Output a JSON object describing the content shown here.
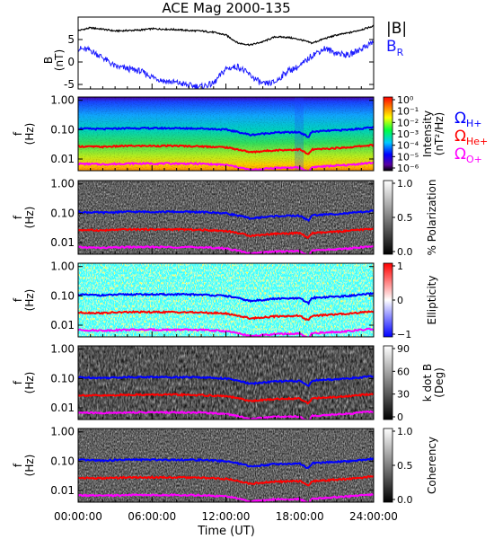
{
  "title": "ACE Mag 2000-135",
  "colors": {
    "btotal": "#000000",
    "br": "#1a1aff",
    "h_plus": "#0000ff",
    "he_plus": "#ff0000",
    "o_plus": "#ff00ff"
  },
  "legend": {
    "btotal": "|B|",
    "br_main": "B",
    "br_sub": "R",
    "omega": "Ω",
    "h_sub": "H+",
    "he_sub": "He+",
    "o_sub": "O+"
  },
  "chart_data": [
    {
      "panel": "B",
      "type": "line",
      "ylabel": "B",
      "ylabel_unit": "(nT)",
      "ylim": [
        -6,
        10
      ],
      "yticks": [
        "-5",
        "0",
        "5"
      ],
      "ytick_values": [
        -5,
        0,
        5
      ],
      "x_hours": [
        0,
        1,
        2,
        3,
        4,
        5,
        6,
        7,
        8,
        9,
        10,
        11,
        12,
        13,
        14,
        15,
        16,
        17,
        18,
        19,
        20,
        21,
        22,
        23,
        24
      ],
      "series": [
        {
          "name": "|B|",
          "values": [
            7.0,
            7.6,
            7.3,
            6.9,
            7.0,
            7.1,
            7.4,
            7.3,
            7.2,
            7.0,
            6.9,
            6.6,
            6.0,
            4.2,
            3.8,
            4.5,
            5.6,
            5.5,
            5.0,
            4.2,
            5.2,
            6.0,
            6.5,
            7.2,
            8.0
          ]
        },
        {
          "name": "B_R",
          "values": [
            3.0,
            2.6,
            1.0,
            -1.0,
            -1.5,
            -2.0,
            -3.3,
            -4.2,
            -4.6,
            -5.2,
            -5.5,
            -4.8,
            -1.5,
            -1.0,
            -3.0,
            -5.0,
            -4.5,
            -2.0,
            -1.0,
            1.5,
            3.0,
            2.0,
            1.5,
            3.0,
            4.5
          ]
        }
      ]
    },
    {
      "panel": "intensity",
      "type": "heatmap",
      "ylabel": "f",
      "ylabel_unit": "(Hz)",
      "colorbar_label": "Intensity",
      "colorbar_unit": "(nT²/Hz)",
      "colorbar_ticks": [
        "10⁰",
        "10⁻¹",
        "10⁻²",
        "10⁻³",
        "10⁻⁴",
        "10⁻⁵",
        "10⁻⁶"
      ],
      "colorbar_range": [
        -6,
        0
      ],
      "colorbar_scale": "log",
      "colormap": "rainbow"
    },
    {
      "panel": "polarization",
      "type": "heatmap",
      "ylabel": "f",
      "ylabel_unit": "(Hz)",
      "colorbar_label": "% Polarization",
      "colorbar_ticks": [
        "1.0",
        "0.5",
        "0.0"
      ],
      "colorbar_range": [
        0,
        1
      ],
      "colormap": "gray"
    },
    {
      "panel": "ellipticity",
      "type": "heatmap",
      "ylabel": "f",
      "ylabel_unit": "(Hz)",
      "colorbar_label": "Ellipticity",
      "colorbar_ticks": [
        "1",
        "0",
        "−1"
      ],
      "colorbar_range": [
        -1,
        1
      ],
      "colormap": "blue-white-red"
    },
    {
      "panel": "kdotb",
      "type": "heatmap",
      "ylabel": "f",
      "ylabel_unit": "(Hz)",
      "colorbar_label": "k dot B",
      "colorbar_unit": "(Deg)",
      "colorbar_ticks": [
        "90",
        "60",
        "30",
        "0"
      ],
      "colorbar_range": [
        0,
        90
      ],
      "colormap": "gray"
    },
    {
      "panel": "coherency",
      "type": "heatmap",
      "ylabel": "f",
      "ylabel_unit": "(Hz)",
      "colorbar_label": "Coherency",
      "colorbar_ticks": [
        "1.0",
        "0.5",
        "0.0"
      ],
      "colorbar_range": [
        0,
        1
      ],
      "colormap": "gray"
    }
  ],
  "freq_axis": {
    "scale": "log",
    "ylim_hz": [
      0.004,
      1.3
    ],
    "ticks": [
      "1.00",
      "0.10",
      "0.01"
    ],
    "tick_values": [
      1.0,
      0.1,
      0.01
    ]
  },
  "gyrofrequencies": {
    "x_hours": [
      0,
      2,
      4,
      6,
      8,
      10,
      12,
      14,
      16,
      18,
      18.7,
      19,
      20,
      22,
      24
    ],
    "h_plus": [
      0.11,
      0.105,
      0.112,
      0.112,
      0.112,
      0.11,
      0.1,
      0.066,
      0.08,
      0.082,
      0.055,
      0.085,
      0.09,
      0.1,
      0.12
    ],
    "he_plus": [
      0.027,
      0.026,
      0.028,
      0.028,
      0.028,
      0.027,
      0.025,
      0.017,
      0.02,
      0.021,
      0.014,
      0.021,
      0.022,
      0.025,
      0.03
    ],
    "o_plus": [
      0.0069,
      0.0066,
      0.007,
      0.007,
      0.007,
      0.0069,
      0.0063,
      0.0042,
      0.005,
      0.0051,
      0.0035,
      0.0053,
      0.0056,
      0.0063,
      0.0075
    ]
  },
  "x_axis": {
    "label": "Time (UT)",
    "range_hours": [
      0,
      24
    ],
    "tick_hours": [
      0,
      6,
      12,
      18,
      24
    ],
    "tick_labels": [
      "00:00:00",
      "06:00:00",
      "12:00:00",
      "18:00:00",
      "24:00:00"
    ]
  }
}
